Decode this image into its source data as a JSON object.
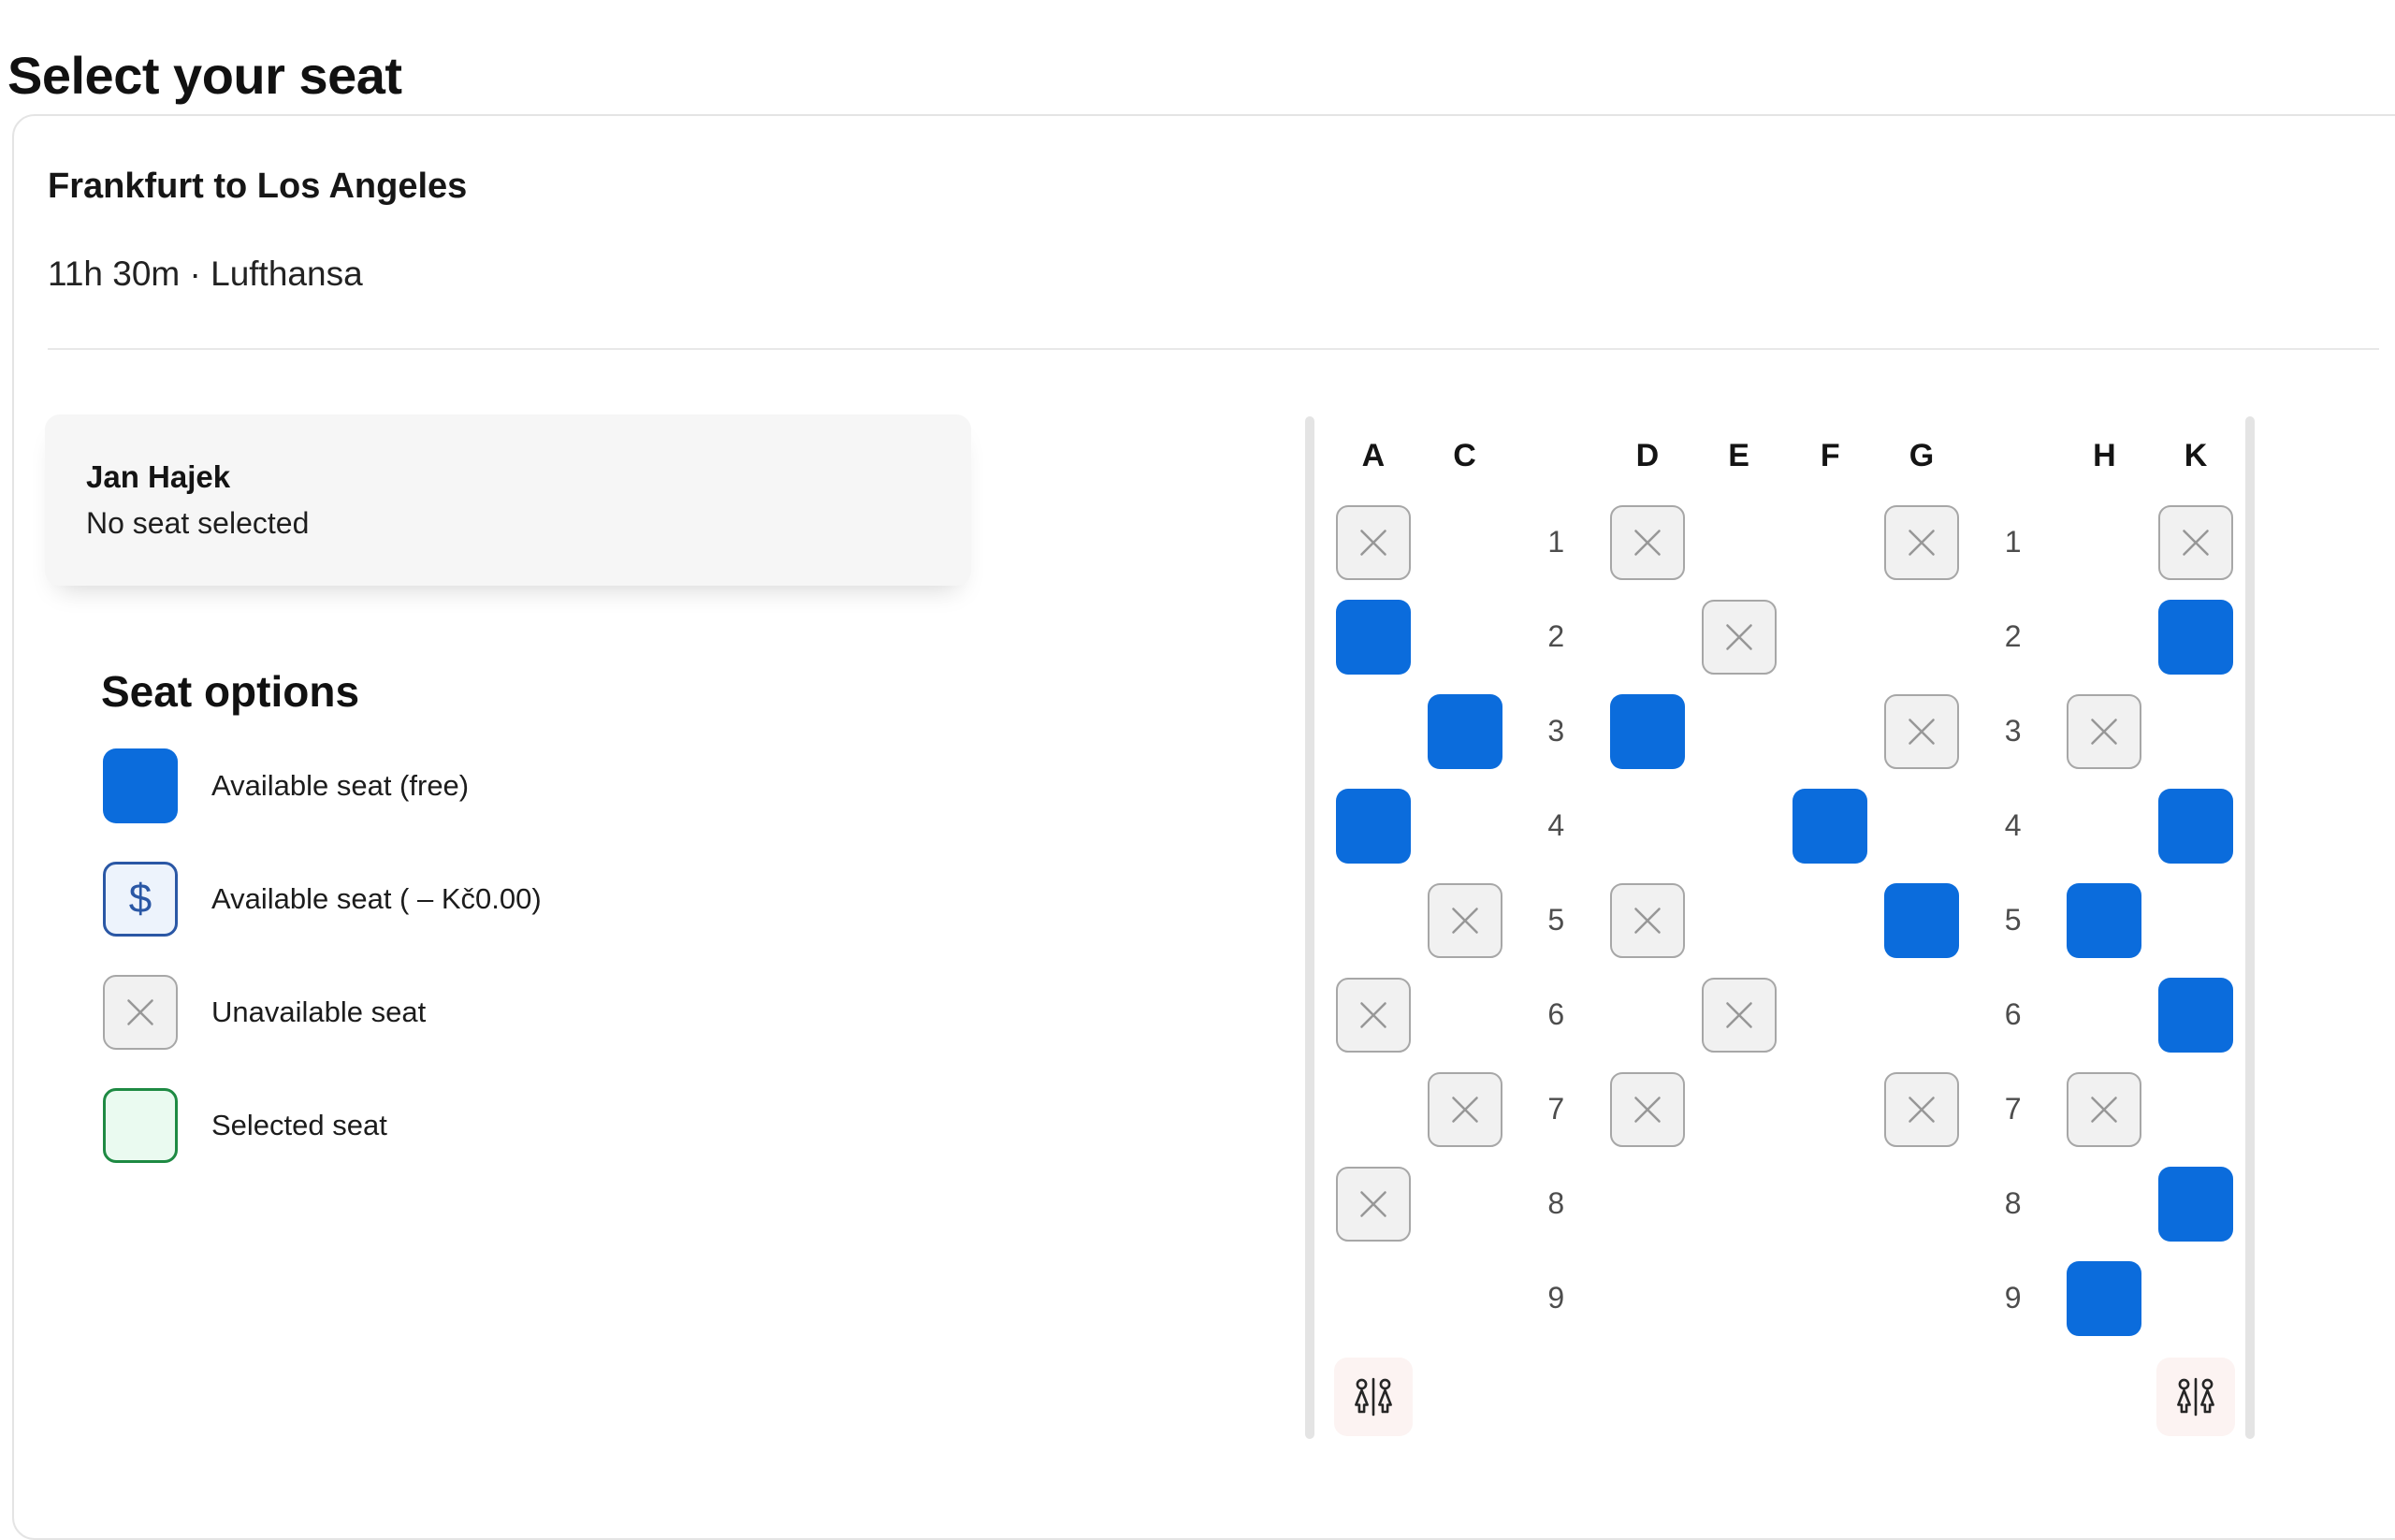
{
  "page_title": "Select your seat",
  "flight": {
    "route": "Frankfurt to Los Angeles",
    "meta": "11h 30m · Lufthansa"
  },
  "passenger": {
    "name": "Jan Hajek",
    "seat_status": "No seat selected"
  },
  "legend": {
    "heading": "Seat options",
    "items": [
      {
        "type": "available-free",
        "label": "Available seat (free)"
      },
      {
        "type": "available-paid",
        "label": "Available seat ( – Kč0.00)"
      },
      {
        "type": "unavailable",
        "label": "Unavailable seat"
      },
      {
        "type": "selected",
        "label": "Selected seat"
      }
    ],
    "paid_symbol": "$"
  },
  "seat_map": {
    "column_headers": [
      "A",
      "C",
      "D",
      "E",
      "F",
      "G",
      "H",
      "K"
    ],
    "column_layout": [
      "A",
      "C",
      "#",
      "D",
      "E",
      "F",
      "G",
      "#",
      "H",
      "K"
    ],
    "rows": [
      {
        "number": "1",
        "seats": {
          "A": "unavailable",
          "D": "unavailable",
          "G": "unavailable",
          "K": "unavailable"
        }
      },
      {
        "number": "2",
        "seats": {
          "A": "available",
          "E": "unavailable",
          "K": "available"
        }
      },
      {
        "number": "3",
        "seats": {
          "C": "available",
          "D": "available",
          "G": "unavailable",
          "H": "unavailable"
        }
      },
      {
        "number": "4",
        "seats": {
          "A": "available",
          "F": "available",
          "K": "available"
        }
      },
      {
        "number": "5",
        "seats": {
          "C": "unavailable",
          "D": "unavailable",
          "G": "available",
          "H": "available"
        }
      },
      {
        "number": "6",
        "seats": {
          "A": "unavailable",
          "E": "unavailable",
          "K": "available"
        }
      },
      {
        "number": "7",
        "seats": {
          "C": "unavailable",
          "D": "unavailable",
          "G": "unavailable",
          "H": "unavailable"
        }
      },
      {
        "number": "8",
        "seats": {
          "A": "unavailable",
          "K": "available"
        }
      },
      {
        "number": "9",
        "seats": {
          "H": "available"
        }
      }
    ],
    "facilities": {
      "type": "lavatory",
      "positions": [
        "A",
        "K"
      ]
    }
  },
  "colors": {
    "available_seat": "#0b6cdc",
    "paid_border": "#2a57a5",
    "paid_bg": "#edf3fc",
    "unavailable_bg": "#f1f1f1",
    "unavailable_border": "#a7a7a7",
    "selected_border": "#1e8a43",
    "selected_bg": "#eafaf0",
    "lavatory_bg": "#fcf3f2"
  }
}
